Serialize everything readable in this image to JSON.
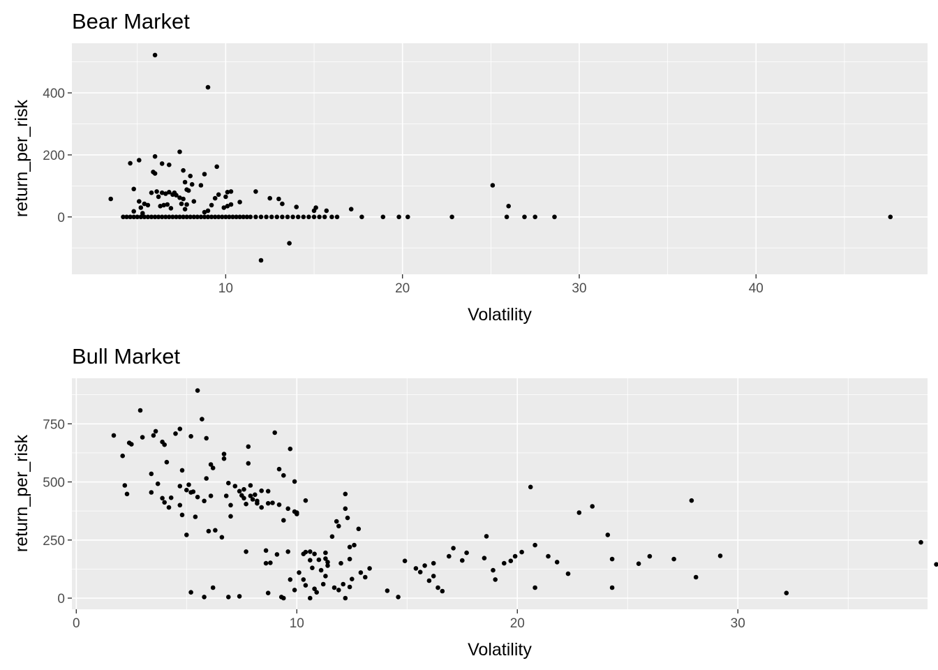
{
  "chart_data": [
    {
      "type": "scatter",
      "title": "Bear Market",
      "xlabel": "Volatility",
      "ylabel": "return_per_risk",
      "xlim": [
        1.3,
        49.7
      ],
      "ylim": [
        -185,
        560
      ],
      "x_ticks": [
        10,
        20,
        30,
        40
      ],
      "x_tick_labels": [
        "10",
        "20",
        "30",
        "40"
      ],
      "y_ticks": [
        0,
        200,
        400
      ],
      "y_tick_labels": [
        "0",
        "200",
        "400"
      ],
      "grid": true,
      "legend": "none",
      "point_color": "#000000",
      "panel_color": "#ebebeb",
      "points": [
        [
          3.5,
          58
        ],
        [
          6,
          522
        ],
        [
          9,
          418
        ],
        [
          6,
          195
        ],
        [
          7.4,
          210
        ],
        [
          9.5,
          162
        ],
        [
          6.4,
          172
        ],
        [
          6.8,
          168
        ],
        [
          4.6,
          173
        ],
        [
          5.1,
          183
        ],
        [
          5.9,
          145
        ],
        [
          6,
          140
        ],
        [
          7.6,
          150
        ],
        [
          8,
          132
        ],
        [
          8.8,
          138
        ],
        [
          7.7,
          112
        ],
        [
          8.1,
          105
        ],
        [
          8.6,
          102
        ],
        [
          7.8,
          88
        ],
        [
          4.8,
          90
        ],
        [
          6.1,
          82
        ],
        [
          6.4,
          78
        ],
        [
          6.6,
          75
        ],
        [
          6.8,
          80
        ],
        [
          7,
          72
        ],
        [
          7.1,
          78
        ],
        [
          7.2,
          70
        ],
        [
          7.4,
          62
        ],
        [
          7.6,
          58
        ],
        [
          7.9,
          85
        ],
        [
          9.4,
          60
        ],
        [
          9.6,
          72
        ],
        [
          10,
          65
        ],
        [
          10.1,
          80
        ],
        [
          10.3,
          82
        ],
        [
          10.1,
          35
        ],
        [
          10.3,
          40
        ],
        [
          10.8,
          48
        ],
        [
          11.7,
          82
        ],
        [
          12.5,
          60
        ],
        [
          13,
          58
        ],
        [
          13.2,
          42
        ],
        [
          14,
          32
        ],
        [
          15,
          20
        ],
        [
          15.1,
          30
        ],
        [
          15.7,
          20
        ],
        [
          17.1,
          25
        ],
        [
          25.1,
          102
        ],
        [
          26,
          35
        ],
        [
          5.1,
          50
        ],
        [
          5.4,
          42
        ],
        [
          5.6,
          38
        ],
        [
          5.8,
          78
        ],
        [
          5.2,
          30
        ],
        [
          6.2,
          65
        ],
        [
          6.3,
          35
        ],
        [
          6.5,
          38
        ],
        [
          6.7,
          40
        ],
        [
          7.5,
          42
        ],
        [
          8.2,
          50
        ],
        [
          7.8,
          40
        ],
        [
          9.2,
          38
        ],
        [
          9,
          20
        ],
        [
          9.9,
          30
        ],
        [
          4.8,
          18
        ],
        [
          5.3,
          12
        ],
        [
          6.9,
          28
        ],
        [
          7.7,
          25
        ],
        [
          8.8,
          15
        ],
        [
          13.6,
          -85
        ],
        [
          12,
          -140
        ],
        [
          4.2,
          0
        ],
        [
          4.4,
          0
        ],
        [
          4.6,
          0
        ],
        [
          4.8,
          0
        ],
        [
          5,
          0
        ],
        [
          5.2,
          0
        ],
        [
          5.4,
          0
        ],
        [
          5.6,
          0
        ],
        [
          5.8,
          0
        ],
        [
          6,
          0
        ],
        [
          6.2,
          0
        ],
        [
          6.4,
          0
        ],
        [
          6.6,
          0
        ],
        [
          6.8,
          0
        ],
        [
          7,
          0
        ],
        [
          7.2,
          0
        ],
        [
          7.4,
          0
        ],
        [
          7.6,
          0
        ],
        [
          7.8,
          0
        ],
        [
          8,
          0
        ],
        [
          8.2,
          0
        ],
        [
          8.4,
          0
        ],
        [
          8.6,
          0
        ],
        [
          8.8,
          0
        ],
        [
          9,
          0
        ],
        [
          9.2,
          0
        ],
        [
          9.4,
          0
        ],
        [
          9.6,
          0
        ],
        [
          9.8,
          0
        ],
        [
          10,
          0
        ],
        [
          10.2,
          0
        ],
        [
          10.4,
          0
        ],
        [
          10.6,
          0
        ],
        [
          10.8,
          0
        ],
        [
          11,
          0
        ],
        [
          11.2,
          0
        ],
        [
          11.4,
          0
        ],
        [
          11.7,
          0
        ],
        [
          12,
          0
        ],
        [
          12.3,
          0
        ],
        [
          12.6,
          0
        ],
        [
          12.9,
          0
        ],
        [
          13.2,
          0
        ],
        [
          13.5,
          0
        ],
        [
          13.8,
          0
        ],
        [
          14.1,
          0
        ],
        [
          14.4,
          0
        ],
        [
          14.7,
          0
        ],
        [
          15,
          0
        ],
        [
          15.3,
          0
        ],
        [
          15.6,
          0
        ],
        [
          16,
          0
        ],
        [
          16.3,
          0
        ],
        [
          17.7,
          0
        ],
        [
          18.9,
          0
        ],
        [
          19.8,
          0
        ],
        [
          20.3,
          0
        ],
        [
          22.8,
          0
        ],
        [
          25.9,
          0
        ],
        [
          26.9,
          0
        ],
        [
          27.5,
          0
        ],
        [
          28.6,
          0
        ],
        [
          47.6,
          0
        ]
      ]
    },
    {
      "type": "scatter",
      "title": "Bull Market",
      "xlabel": "Volatility",
      "ylabel": "return_per_risk",
      "xlim": [
        -0.2,
        38.6
      ],
      "ylim": [
        -48,
        946
      ],
      "x_ticks": [
        0,
        10,
        20,
        30
      ],
      "x_tick_labels": [
        "0",
        "10",
        "20",
        "30"
      ],
      "y_ticks": [
        0,
        250,
        500,
        750
      ],
      "y_tick_labels": [
        "0",
        "250",
        "500",
        "750"
      ],
      "grid": true,
      "legend": "none",
      "point_color": "#000000",
      "panel_color": "#ebebeb",
      "points": [
        [
          1.7,
          700
        ],
        [
          2.1,
          612
        ],
        [
          2.2,
          485
        ],
        [
          2.3,
          448
        ],
        [
          2.4,
          668
        ],
        [
          2.5,
          662
        ],
        [
          2.9,
          808
        ],
        [
          3,
          692
        ],
        [
          3.4,
          455
        ],
        [
          3.4,
          535
        ],
        [
          3.5,
          700
        ],
        [
          3.6,
          718
        ],
        [
          3.7,
          492
        ],
        [
          3.9,
          430
        ],
        [
          3.9,
          672
        ],
        [
          4,
          660
        ],
        [
          4.1,
          585
        ],
        [
          4,
          412
        ],
        [
          4.2,
          390
        ],
        [
          4.3,
          432
        ],
        [
          4.5,
          708
        ],
        [
          4.7,
          482
        ],
        [
          4.7,
          728
        ],
        [
          4.7,
          400
        ],
        [
          4.8,
          550
        ],
        [
          4.8,
          358
        ],
        [
          5,
          272
        ],
        [
          5,
          465
        ],
        [
          5.1,
          488
        ],
        [
          5.2,
          455
        ],
        [
          5.2,
          696
        ],
        [
          5.3,
          458
        ],
        [
          5.4,
          350
        ],
        [
          5.5,
          893
        ],
        [
          5.5,
          435
        ],
        [
          5.7,
          770
        ],
        [
          5.8,
          418
        ],
        [
          5.9,
          515
        ],
        [
          5.9,
          688
        ],
        [
          6,
          288
        ],
        [
          6.1,
          440
        ],
        [
          6.1,
          575
        ],
        [
          6.2,
          560
        ],
        [
          6.3,
          292
        ],
        [
          6.6,
          262
        ],
        [
          6.7,
          620
        ],
        [
          6.7,
          600
        ],
        [
          6.8,
          440
        ],
        [
          6.9,
          495
        ],
        [
          7,
          400
        ],
        [
          7,
          352
        ],
        [
          7.2,
          482
        ],
        [
          7.4,
          460
        ],
        [
          7.5,
          442
        ],
        [
          7.6,
          468
        ],
        [
          7.6,
          430
        ],
        [
          7.7,
          405
        ],
        [
          7.7,
          200
        ],
        [
          7.8,
          580
        ],
        [
          7.8,
          652
        ],
        [
          7.9,
          485
        ],
        [
          7.9,
          440
        ],
        [
          8,
          425
        ],
        [
          8.1,
          445
        ],
        [
          8.2,
          418
        ],
        [
          8.2,
          408
        ],
        [
          8.4,
          462
        ],
        [
          8.4,
          390
        ],
        [
          8.6,
          205
        ],
        [
          8.6,
          150
        ],
        [
          8.7,
          460
        ],
        [
          8.7,
          408
        ],
        [
          8.8,
          152
        ],
        [
          8.9,
          410
        ],
        [
          9,
          712
        ],
        [
          9.1,
          188
        ],
        [
          9.2,
          402
        ],
        [
          9.2,
          555
        ],
        [
          9.4,
          335
        ],
        [
          9.4,
          528
        ],
        [
          9.6,
          385
        ],
        [
          9.6,
          200
        ],
        [
          9.7,
          642
        ],
        [
          9.9,
          502
        ],
        [
          9.9,
          372
        ],
        [
          10,
          368
        ],
        [
          10,
          362
        ],
        [
          10.3,
          190
        ],
        [
          10.4,
          420
        ],
        [
          10.4,
          198
        ],
        [
          10.6,
          163
        ],
        [
          10.6,
          200
        ],
        [
          10.7,
          130
        ],
        [
          10.8,
          190
        ],
        [
          11,
          165
        ],
        [
          11.1,
          120
        ],
        [
          11.3,
          195
        ],
        [
          11.3,
          170
        ],
        [
          11.4,
          155
        ],
        [
          11.6,
          265
        ],
        [
          11.8,
          330
        ],
        [
          11.9,
          310
        ],
        [
          12,
          150
        ],
        [
          12.2,
          385
        ],
        [
          12.2,
          448
        ],
        [
          12.3,
          345
        ],
        [
          12.4,
          168
        ],
        [
          12.4,
          220
        ],
        [
          12.6,
          228
        ],
        [
          12.8,
          298
        ],
        [
          5.2,
          25
        ],
        [
          5.8,
          5
        ],
        [
          6.2,
          45
        ],
        [
          6.9,
          5
        ],
        [
          7.4,
          8
        ],
        [
          8.7,
          22
        ],
        [
          9.3,
          5
        ],
        [
          9.4,
          0
        ],
        [
          9.7,
          80
        ],
        [
          9.9,
          35
        ],
        [
          10.1,
          110
        ],
        [
          10.3,
          80
        ],
        [
          10.4,
          55
        ],
        [
          10.6,
          0
        ],
        [
          10.8,
          40
        ],
        [
          10.9,
          25
        ],
        [
          11.2,
          60
        ],
        [
          11.3,
          95
        ],
        [
          11.4,
          140
        ],
        [
          11.7,
          45
        ],
        [
          11.9,
          35
        ],
        [
          12.1,
          60
        ],
        [
          12.2,
          0
        ],
        [
          12.4,
          48
        ],
        [
          12.5,
          82
        ],
        [
          12.9,
          110
        ],
        [
          13.1,
          90
        ],
        [
          13.3,
          128
        ],
        [
          14.1,
          32
        ],
        [
          14.6,
          5
        ],
        [
          14.9,
          160
        ],
        [
          15.4,
          128
        ],
        [
          15.6,
          112
        ],
        [
          15.8,
          140
        ],
        [
          16,
          75
        ],
        [
          16.2,
          95
        ],
        [
          16.2,
          150
        ],
        [
          16.4,
          45
        ],
        [
          16.6,
          30
        ],
        [
          16.9,
          180
        ],
        [
          17.1,
          215
        ],
        [
          17.5,
          162
        ],
        [
          17.7,
          195
        ],
        [
          18.5,
          172
        ],
        [
          18.6,
          266
        ],
        [
          18.9,
          120
        ],
        [
          19,
          80
        ],
        [
          19.4,
          150
        ],
        [
          19.7,
          160
        ],
        [
          19.9,
          180
        ],
        [
          20.2,
          198
        ],
        [
          20.6,
          478
        ],
        [
          20.8,
          45
        ],
        [
          20.8,
          228
        ],
        [
          21.4,
          180
        ],
        [
          21.8,
          155
        ],
        [
          22.3,
          105
        ],
        [
          22.8,
          368
        ],
        [
          23.4,
          395
        ],
        [
          24.1,
          272
        ],
        [
          24.3,
          45
        ],
        [
          24.3,
          168
        ],
        [
          25.5,
          148
        ],
        [
          26,
          180
        ],
        [
          27.1,
          168
        ],
        [
          27.9,
          420
        ],
        [
          28.1,
          90
        ],
        [
          29.2,
          182
        ],
        [
          32.2,
          22
        ],
        [
          38.3,
          240
        ],
        [
          39,
          145
        ]
      ]
    }
  ]
}
